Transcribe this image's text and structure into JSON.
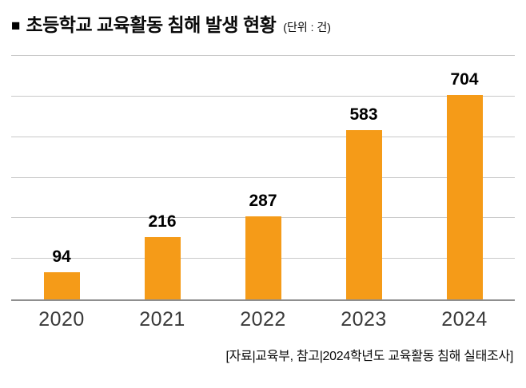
{
  "header": {
    "bullet": "■",
    "title": "초등학교 교육활동 침해 발생 현황",
    "unit": "(단위 : 건)"
  },
  "chart_data": {
    "type": "bar",
    "title": "초등학교 교육활동 침해 발생 현황",
    "unit_label": "(단위 : 건)",
    "categories": [
      "2020",
      "2021",
      "2022",
      "2023",
      "2024"
    ],
    "values": [
      94,
      216,
      287,
      583,
      704
    ],
    "xlabel": "",
    "ylabel": "",
    "ylim": [
      0,
      840
    ],
    "grid": true,
    "gridline_count": 6,
    "legend": false,
    "bar_color": "#F59B18",
    "source": "[자료|교육부, 참고|2024학년도 교육활동 침해 실태조사]"
  },
  "footer": {
    "source": "[자료|교육부, 참고|2024학년도 교육활동 침해 실태조사]"
  }
}
